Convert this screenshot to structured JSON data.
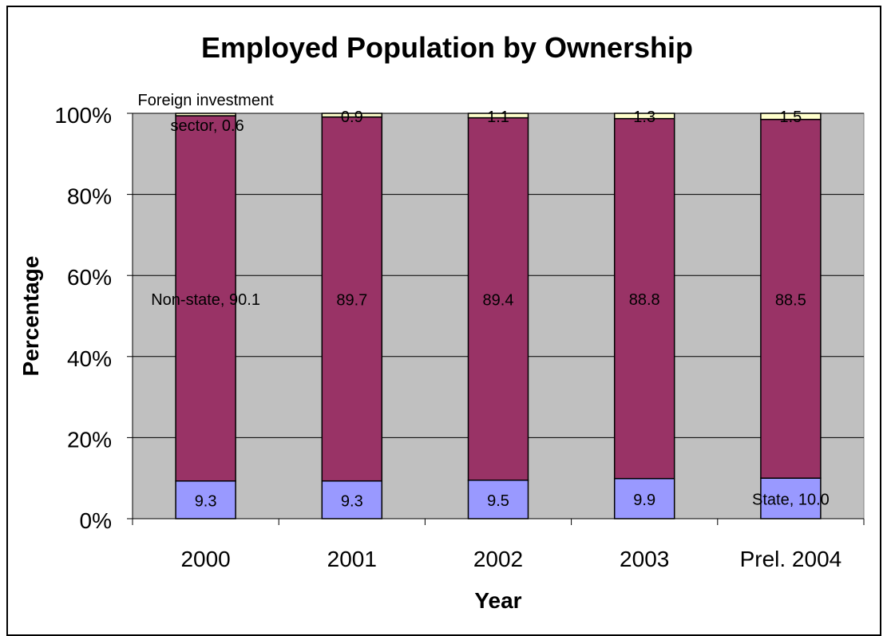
{
  "chart_data": {
    "type": "bar",
    "stacked": true,
    "percent_stacked": true,
    "title": "Employed Population by Ownership",
    "xlabel": "Year",
    "ylabel": "Percentage",
    "ylim": [
      0,
      100
    ],
    "yticks": [
      "0%",
      "20%",
      "40%",
      "60%",
      "80%",
      "100%"
    ],
    "categories": [
      "2000",
      "2001",
      "2002",
      "2003",
      "Prel. 2004"
    ],
    "grid": true,
    "legend": "none",
    "series": [
      {
        "name": "State",
        "values": [
          9.3,
          9.3,
          9.5,
          9.9,
          10.0
        ],
        "labels": [
          "9.3",
          "9.3",
          "9.5",
          "9.9",
          "State, 10.0"
        ],
        "color": "#9999ff"
      },
      {
        "name": "Non-state",
        "values": [
          90.1,
          89.7,
          89.4,
          88.8,
          88.5
        ],
        "labels": [
          "Non-state, 90.1",
          "89.7",
          "89.4",
          "88.8",
          "88.5"
        ],
        "color": "#993366"
      },
      {
        "name": "Foreign investment sector",
        "values": [
          0.6,
          0.9,
          1.1,
          1.3,
          1.5
        ],
        "labels": [
          "Foreign investment sector, 0.6",
          "0.9",
          "1.1",
          "1.3",
          "1.5"
        ],
        "color": "#ffffcc"
      }
    ],
    "colors": {
      "plot_background": "#c0c0c0",
      "gridline": "#000000"
    }
  }
}
